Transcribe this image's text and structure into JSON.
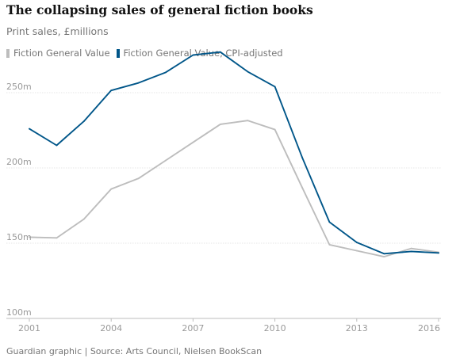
{
  "title": "The collapsing sales of general fiction books",
  "subtitle": "Print sales, £millions",
  "source": "Guardian graphic | Source: Arts Council, Nielsen BookScan",
  "chart_data": {
    "type": "line",
    "title": "The collapsing sales of general fiction books",
    "subtitle": "Print sales, £millions",
    "xlabel": "",
    "ylabel": "",
    "x": [
      2001,
      2002,
      2003,
      2004,
      2005,
      2006,
      2007,
      2008,
      2009,
      2010,
      2011,
      2012,
      2013,
      2014,
      2015,
      2016
    ],
    "xlim": [
      2001,
      2016
    ],
    "ylim": [
      100,
      280
    ],
    "x_ticks": [
      {
        "value": 2001,
        "label": "2001"
      },
      {
        "value": 2004,
        "label": "2004"
      },
      {
        "value": 2007,
        "label": "2007"
      },
      {
        "value": 2010,
        "label": "2010"
      },
      {
        "value": 2013,
        "label": "2013"
      },
      {
        "value": 2016,
        "label": "2016"
      }
    ],
    "y_ticks": [
      {
        "value": 100,
        "label": "100m"
      },
      {
        "value": 150,
        "label": "150m"
      },
      {
        "value": 200,
        "label": "200m"
      },
      {
        "value": 250,
        "label": "250m"
      }
    ],
    "grid": true,
    "legend_position": "top-left",
    "series": [
      {
        "name": "Fiction General Value",
        "color": "#bdbdbd",
        "values": [
          154,
          153.5,
          166,
          186,
          193,
          205,
          217,
          229,
          231.5,
          225.5,
          187,
          149,
          145,
          141,
          146.5,
          144
        ]
      },
      {
        "name": "Fiction General Value, CPI-adjusted",
        "color": "#005689",
        "values": [
          226,
          215,
          231,
          251.5,
          256.5,
          263.5,
          275,
          277,
          264,
          254,
          207,
          164,
          150.5,
          143,
          144.5,
          143.5
        ]
      }
    ]
  }
}
